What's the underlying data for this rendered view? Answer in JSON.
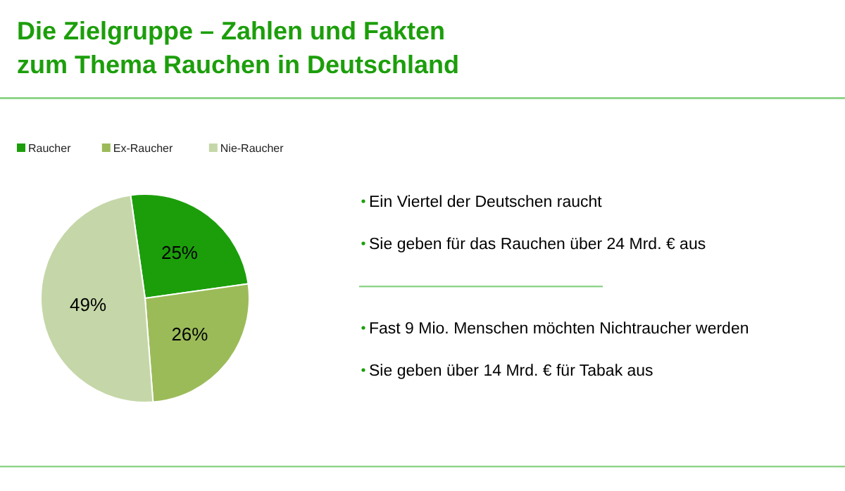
{
  "chart_data": {
    "type": "pie",
    "title": "Die Zielgruppe – Zahlen und Fakten\nzum Thema Rauchen in Deutschland",
    "categories": [
      "Raucher",
      "Ex-Raucher",
      "Nie-Raucher"
    ],
    "values": [
      25,
      26,
      49
    ],
    "colors": [
      "#1c9e0b",
      "#9bbb59",
      "#c5d7a8"
    ],
    "value_labels": [
      "25%",
      "26%",
      "49%"
    ],
    "legend": "top left",
    "annotations": [
      "Ein Viertel der Deutschen raucht",
      "Sie geben für das Rauchen über 24 Mrd. € aus",
      "Fast 9 Mio. Menschen möchten Nichtraucher werden",
      "Sie geben über 14 Mrd. € für Tabak aus"
    ]
  }
}
